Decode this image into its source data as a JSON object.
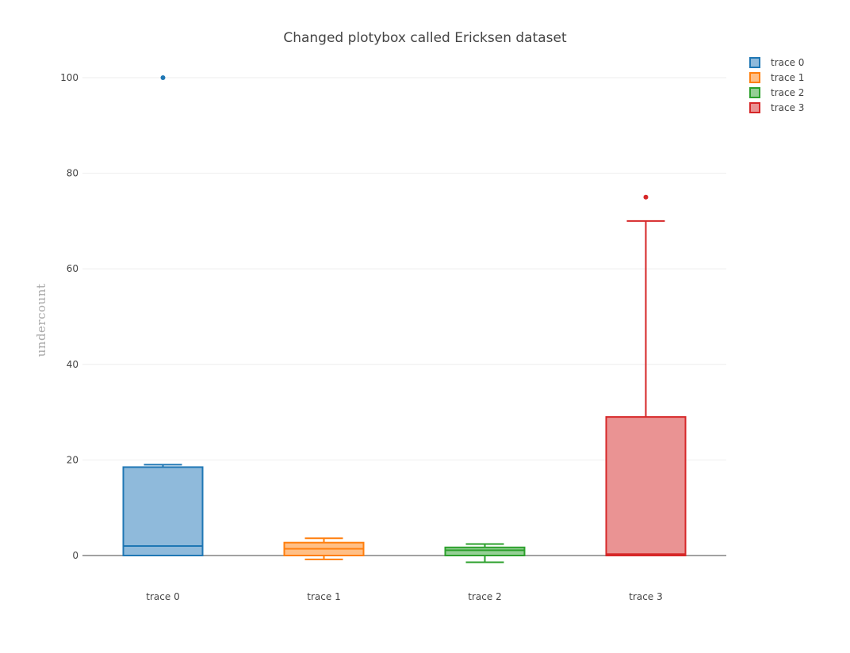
{
  "chart_data": {
    "type": "box",
    "title": "Changed plotybox called Ericksen dataset",
    "xlabel": "",
    "ylabel": "undercount",
    "ylim": [
      -10,
      105
    ],
    "yticks": [
      0,
      20,
      40,
      60,
      80,
      100
    ],
    "grid": true,
    "legend_position": "top-right",
    "categories": [
      "trace 0",
      "trace 1",
      "trace 2",
      "trace 3"
    ],
    "series": [
      {
        "name": "trace 0",
        "color": "#1f77b4",
        "fill": "#8fbadb",
        "min": 0,
        "q1": 0,
        "median": 2,
        "q3": 18.5,
        "max": 19,
        "outliers": [
          100
        ]
      },
      {
        "name": "trace 1",
        "color": "#ff7f0e",
        "fill": "#ffbf86",
        "min": -0.8,
        "q1": 0,
        "median": 1.4,
        "q3": 2.7,
        "max": 3.6,
        "outliers": []
      },
      {
        "name": "trace 2",
        "color": "#2ca02c",
        "fill": "#95cf95",
        "min": -1.4,
        "q1": 0,
        "median": 1.1,
        "q3": 1.7,
        "max": 2.4,
        "outliers": []
      },
      {
        "name": "trace 3",
        "color": "#d62728",
        "fill": "#ea9393",
        "min": 0,
        "q1": 0,
        "median": 0.3,
        "q3": 29,
        "max": 70,
        "outliers": [
          75
        ]
      }
    ]
  }
}
